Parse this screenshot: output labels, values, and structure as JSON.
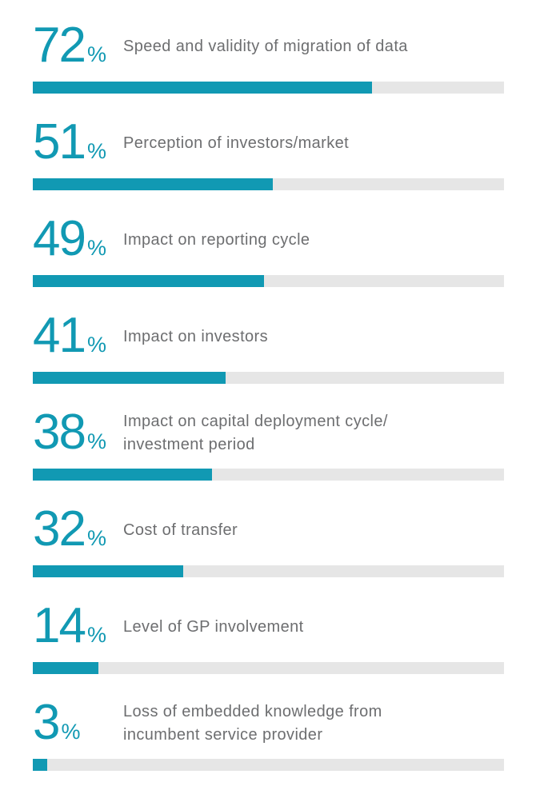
{
  "colors": {
    "accent": "#1199b3",
    "track": "#e6e6e6",
    "label_text": "#6d6e70",
    "background": "#ffffff"
  },
  "chart_data": {
    "type": "bar",
    "orientation": "horizontal",
    "title": "",
    "unit": "%",
    "xlim": [
      0,
      100
    ],
    "grid": false,
    "legend": "none",
    "categories": [
      "Speed and validity of migration of data",
      "Perception of investors/market",
      "Impact on reporting cycle",
      "Impact on investors",
      "Impact on capital deployment cycle/investment period",
      "Cost of transfer",
      "Level of GP involvement",
      "Loss of embedded knowledge from incumbent service provider"
    ],
    "values": [
      72,
      51,
      49,
      41,
      38,
      32,
      14,
      3
    ]
  },
  "rows": [
    {
      "value": "72",
      "unit": "%",
      "label": "Speed and validity of migration of data"
    },
    {
      "value": "51",
      "unit": "%",
      "label": "Perception of investors/market"
    },
    {
      "value": "49",
      "unit": "%",
      "label": "Impact on reporting cycle"
    },
    {
      "value": "41",
      "unit": "%",
      "label": "Impact on investors"
    },
    {
      "value": "38",
      "unit": "%",
      "label": "Impact on capital deployment cycle/\ninvestment period"
    },
    {
      "value": "32",
      "unit": "%",
      "label": "Cost of transfer"
    },
    {
      "value": "14",
      "unit": "%",
      "label": "Level of GP involvement"
    },
    {
      "value": "3",
      "unit": "%",
      "label": "Loss of embedded knowledge from\nincumbent service provider"
    }
  ]
}
